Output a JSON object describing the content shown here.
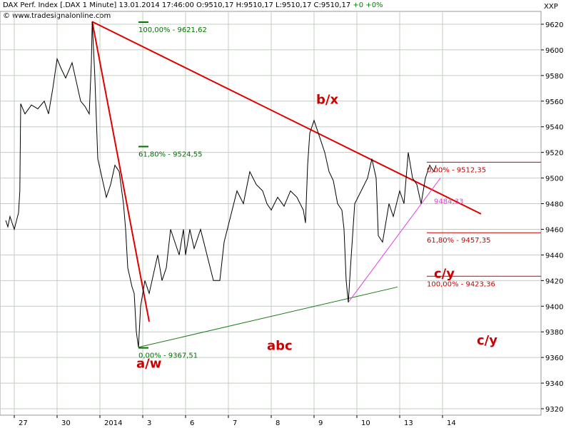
{
  "header": {
    "title": "DAX Perf. Index [.DAX  1 Minute]",
    "datetime": "13.01.2014 17:46:00",
    "ohlc": "O:9510,17 H:9510,17 L:9510,17 C:9510,17",
    "change": "+0 +0%"
  },
  "watermark": "© www.tradesignalonline.com",
  "scale_label": "XXP",
  "colors": {
    "price": "#000000",
    "red_line": "#e00000",
    "green_line": "#1a7a1a",
    "magenta_line": "#e040e0",
    "fib_green": "#007000",
    "fib_red": "#cc0000",
    "grid": "#bfcfbf"
  },
  "chart_data": {
    "type": "line",
    "title": "DAX Perf. Index [.DAX  1 Minute]",
    "xlabel": "",
    "ylabel": "",
    "ylim": [
      9315,
      9630
    ],
    "grid": true,
    "y_ticks": [
      9320,
      9340,
      9360,
      9380,
      9400,
      9420,
      9440,
      9460,
      9480,
      9500,
      9520,
      9540,
      9560,
      9580,
      9600,
      9620
    ],
    "x_ticks": [
      {
        "label": "27",
        "session": 0.2
      },
      {
        "label": "30",
        "session": 1.2
      },
      {
        "label": "2014",
        "session": 2.2
      },
      {
        "label": "3",
        "session": 3.2
      },
      {
        "label": "6",
        "session": 4.2
      },
      {
        "label": "7",
        "session": 5.2
      },
      {
        "label": "8",
        "session": 6.2
      },
      {
        "label": "9",
        "session": 7.2
      },
      {
        "label": "10",
        "session": 8.2
      },
      {
        "label": "13",
        "session": 9.2
      },
      {
        "label": "14",
        "session": 10.2
      }
    ],
    "series": [
      {
        "values": [
          [
            0.0,
            9467
          ],
          [
            0.05,
            9462
          ],
          [
            0.1,
            9470
          ],
          [
            0.2,
            9460
          ],
          [
            0.3,
            9473
          ],
          [
            0.33,
            9490
          ],
          [
            0.35,
            9558
          ],
          [
            0.45,
            9550
          ],
          [
            0.6,
            9557
          ],
          [
            0.75,
            9554
          ],
          [
            0.9,
            9560
          ],
          [
            1.0,
            9550
          ],
          [
            1.1,
            9570
          ],
          [
            1.2,
            9593
          ],
          [
            1.3,
            9585
          ],
          [
            1.4,
            9578
          ],
          [
            1.55,
            9590
          ],
          [
            1.65,
            9575
          ],
          [
            1.75,
            9560
          ],
          [
            1.85,
            9556
          ],
          [
            1.95,
            9550
          ],
          [
            2.0,
            9590
          ],
          [
            2.02,
            9622
          ],
          [
            2.08,
            9580
          ],
          [
            2.15,
            9515
          ],
          [
            2.25,
            9500
          ],
          [
            2.35,
            9485
          ],
          [
            2.45,
            9495
          ],
          [
            2.55,
            9510
          ],
          [
            2.65,
            9505
          ],
          [
            2.75,
            9480
          ],
          [
            2.8,
            9460
          ],
          [
            2.85,
            9430
          ],
          [
            2.95,
            9415
          ],
          [
            3.0,
            9410
          ],
          [
            3.05,
            9380
          ],
          [
            3.1,
            9368
          ],
          [
            3.15,
            9400
          ],
          [
            3.25,
            9420
          ],
          [
            3.35,
            9410
          ],
          [
            3.45,
            9425
          ],
          [
            3.55,
            9440
          ],
          [
            3.65,
            9420
          ],
          [
            3.75,
            9430
          ],
          [
            3.85,
            9460
          ],
          [
            3.95,
            9450
          ],
          [
            4.05,
            9440
          ],
          [
            4.15,
            9460
          ],
          [
            4.2,
            9440
          ],
          [
            4.3,
            9460
          ],
          [
            4.4,
            9445
          ],
          [
            4.55,
            9460
          ],
          [
            4.7,
            9440
          ],
          [
            4.85,
            9420
          ],
          [
            5.0,
            9420
          ],
          [
            5.1,
            9450
          ],
          [
            5.25,
            9470
          ],
          [
            5.4,
            9490
          ],
          [
            5.55,
            9480
          ],
          [
            5.7,
            9505
          ],
          [
            5.85,
            9495
          ],
          [
            6.0,
            9490
          ],
          [
            6.1,
            9480
          ],
          [
            6.2,
            9475
          ],
          [
            6.35,
            9485
          ],
          [
            6.5,
            9478
          ],
          [
            6.65,
            9490
          ],
          [
            6.8,
            9485
          ],
          [
            6.95,
            9475
          ],
          [
            7.0,
            9465
          ],
          [
            7.05,
            9510
          ],
          [
            7.1,
            9535
          ],
          [
            7.2,
            9545
          ],
          [
            7.3,
            9535
          ],
          [
            7.45,
            9520
          ],
          [
            7.55,
            9505
          ],
          [
            7.65,
            9498
          ],
          [
            7.75,
            9480
          ],
          [
            7.85,
            9475
          ],
          [
            7.9,
            9460
          ],
          [
            7.95,
            9420
          ],
          [
            8.0,
            9403
          ],
          [
            8.05,
            9430
          ],
          [
            8.15,
            9480
          ],
          [
            8.3,
            9490
          ],
          [
            8.45,
            9500
          ],
          [
            8.55,
            9515
          ],
          [
            8.65,
            9500
          ],
          [
            8.7,
            9455
          ],
          [
            8.8,
            9450
          ],
          [
            8.95,
            9480
          ],
          [
            9.05,
            9470
          ],
          [
            9.2,
            9490
          ],
          [
            9.3,
            9480
          ],
          [
            9.4,
            9520
          ],
          [
            9.5,
            9500
          ],
          [
            9.6,
            9495
          ],
          [
            9.7,
            9480
          ],
          [
            9.8,
            9500
          ],
          [
            9.9,
            9510
          ],
          [
            10.0,
            9505
          ],
          [
            10.05,
            9510
          ]
        ]
      }
    ],
    "trendlines": [
      {
        "color": "red",
        "from": [
          2.02,
          9622
        ],
        "to": [
          11.1,
          9472
        ]
      },
      {
        "color": "red",
        "from": [
          2.02,
          9622
        ],
        "to": [
          3.35,
          9388
        ]
      },
      {
        "color": "green",
        "from": [
          3.1,
          9368
        ],
        "to": [
          9.15,
          9415
        ]
      },
      {
        "color": "magenta",
        "from": [
          8.0,
          9403
        ],
        "to": [
          10.15,
          9500
        ]
      }
    ],
    "fib_levels": [
      {
        "group": "green",
        "percent": "100,00%",
        "value": "9621,62",
        "price": 9621.62,
        "session": 3.1
      },
      {
        "group": "green",
        "percent": "61,80%",
        "value": "9524,55",
        "price": 9524.55,
        "session": 3.1
      },
      {
        "group": "green",
        "percent": "0,00%",
        "value": "9367,51",
        "price": 9367.51,
        "session": 3.1
      },
      {
        "group": "red",
        "percent": "0,00%",
        "value": "9512,35",
        "price": 9512.35,
        "session": 10.0
      },
      {
        "group": "red",
        "percent": "61,80%",
        "value": "9457,35",
        "price": 9457.35,
        "session": 10.0
      },
      {
        "group": "red",
        "percent": "100,00%",
        "value": "9423,36",
        "price": 9423.36,
        "session": 10.0
      }
    ],
    "annotations": [
      {
        "text": "b/x",
        "session": 7.25,
        "price": 9558,
        "color": "red"
      },
      {
        "text": "a/w",
        "session": 3.05,
        "price": 9352,
        "color": "red"
      },
      {
        "text": "abc",
        "session": 6.1,
        "price": 9366,
        "color": "red"
      },
      {
        "text": "c/y",
        "session": 10.0,
        "price": 9422,
        "color": "red"
      },
      {
        "text": "c/y",
        "session": 11.0,
        "price": 9370,
        "color": "red"
      },
      {
        "text": "9484,33",
        "session": 10.0,
        "price": 9480,
        "color": "magenta"
      }
    ]
  }
}
